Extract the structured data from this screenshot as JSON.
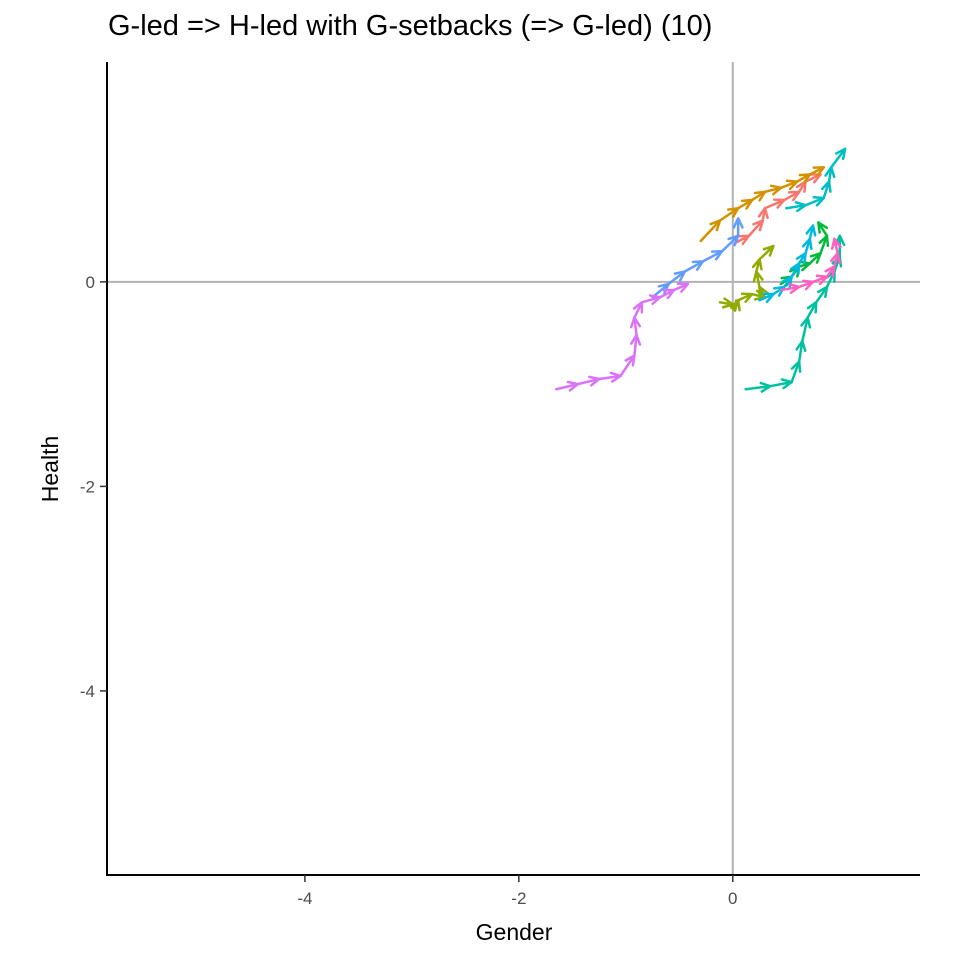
{
  "chart_data": {
    "type": "line",
    "title": "G-led => H-led with G-setbacks (=> G-led) (10)",
    "xlabel": "Gender",
    "ylabel": "Health",
    "xlim": [
      -5.85,
      1.75
    ],
    "ylim": [
      -5.8,
      2.15
    ],
    "x_ticks": [
      -4,
      -2,
      0
    ],
    "y_ticks": [
      0,
      -2,
      -4
    ],
    "x_tick_labels": [
      "-4",
      "-2",
      "0"
    ],
    "y_tick_labels": [
      "0",
      "-2",
      "-4"
    ],
    "grid": false,
    "reference_lines": {
      "x": 0,
      "y": 0
    },
    "legend": "none",
    "arrows": true,
    "series": [
      {
        "color": "#F8766D",
        "points": [
          [
            0.02,
            0.38
          ],
          [
            0.15,
            0.45
          ],
          [
            0.28,
            0.6
          ],
          [
            0.3,
            0.72
          ],
          [
            0.48,
            0.8
          ],
          [
            0.62,
            0.88
          ],
          [
            0.68,
            0.98
          ],
          [
            0.82,
            1.05
          ]
        ]
      },
      {
        "color": "#D39200",
        "points": [
          [
            -0.3,
            0.4
          ],
          [
            -0.12,
            0.6
          ],
          [
            0.05,
            0.72
          ],
          [
            0.18,
            0.8
          ],
          [
            0.3,
            0.88
          ],
          [
            0.45,
            0.92
          ],
          [
            0.6,
            0.98
          ],
          [
            0.72,
            1.05
          ],
          [
            0.85,
            1.12
          ]
        ]
      },
      {
        "color": "#93AA00",
        "points": [
          [
            -0.12,
            -0.2
          ],
          [
            0.0,
            -0.22
          ],
          [
            0.02,
            -0.28
          ],
          [
            0.05,
            -0.18
          ],
          [
            0.18,
            -0.12
          ],
          [
            0.3,
            -0.15
          ],
          [
            0.25,
            -0.05
          ],
          [
            0.22,
            0.1
          ],
          [
            0.25,
            0.22
          ],
          [
            0.38,
            0.35
          ]
        ]
      },
      {
        "color": "#00BA38",
        "points": [
          [
            0.45,
            -0.02
          ],
          [
            0.55,
            0.05
          ],
          [
            0.62,
            0.15
          ],
          [
            0.72,
            0.18
          ],
          [
            0.82,
            0.28
          ],
          [
            0.88,
            0.45
          ],
          [
            0.8,
            0.58
          ]
        ]
      },
      {
        "color": "#00C19F",
        "points": [
          [
            0.12,
            -1.05
          ],
          [
            0.35,
            -1.02
          ],
          [
            0.55,
            -0.98
          ],
          [
            0.62,
            -0.78
          ],
          [
            0.65,
            -0.58
          ],
          [
            0.7,
            -0.35
          ],
          [
            0.78,
            -0.2
          ],
          [
            0.88,
            -0.05
          ],
          [
            0.95,
            0.1
          ],
          [
            1.0,
            0.25
          ],
          [
            1.0,
            0.45
          ]
        ]
      },
      {
        "color": "#00B9E3",
        "points": [
          [
            0.25,
            -0.18
          ],
          [
            0.38,
            -0.12
          ],
          [
            0.48,
            -0.05
          ],
          [
            0.55,
            0.05
          ],
          [
            0.62,
            0.18
          ],
          [
            0.68,
            0.28
          ],
          [
            0.72,
            0.42
          ],
          [
            0.75,
            0.55
          ]
        ]
      },
      {
        "color": "#00BFC4",
        "points": [
          [
            0.5,
            0.72
          ],
          [
            0.68,
            0.75
          ],
          [
            0.85,
            0.82
          ],
          [
            0.9,
            0.98
          ],
          [
            0.92,
            1.12
          ],
          [
            1.05,
            1.3
          ]
        ]
      },
      {
        "color": "#619CFF",
        "points": [
          [
            -0.75,
            -0.15
          ],
          [
            -0.6,
            -0.02
          ],
          [
            -0.45,
            0.1
          ],
          [
            -0.28,
            0.2
          ],
          [
            -0.1,
            0.3
          ],
          [
            0.05,
            0.45
          ],
          [
            0.05,
            0.62
          ]
        ]
      },
      {
        "color": "#DB72FB",
        "points": [
          [
            -1.65,
            -1.05
          ],
          [
            -1.45,
            -1.0
          ],
          [
            -1.25,
            -0.95
          ],
          [
            -1.05,
            -0.92
          ],
          [
            -0.92,
            -0.72
          ],
          [
            -0.9,
            -0.52
          ],
          [
            -0.92,
            -0.35
          ],
          [
            -0.85,
            -0.2
          ],
          [
            -0.68,
            -0.15
          ],
          [
            -0.55,
            -0.08
          ],
          [
            -0.42,
            -0.02
          ]
        ]
      },
      {
        "color": "#FF61C3",
        "points": [
          [
            0.45,
            -0.08
          ],
          [
            0.62,
            -0.05
          ],
          [
            0.75,
            0.0
          ],
          [
            0.88,
            0.05
          ],
          [
            0.95,
            0.15
          ],
          [
            0.98,
            0.28
          ],
          [
            0.95,
            0.42
          ]
        ]
      }
    ]
  }
}
